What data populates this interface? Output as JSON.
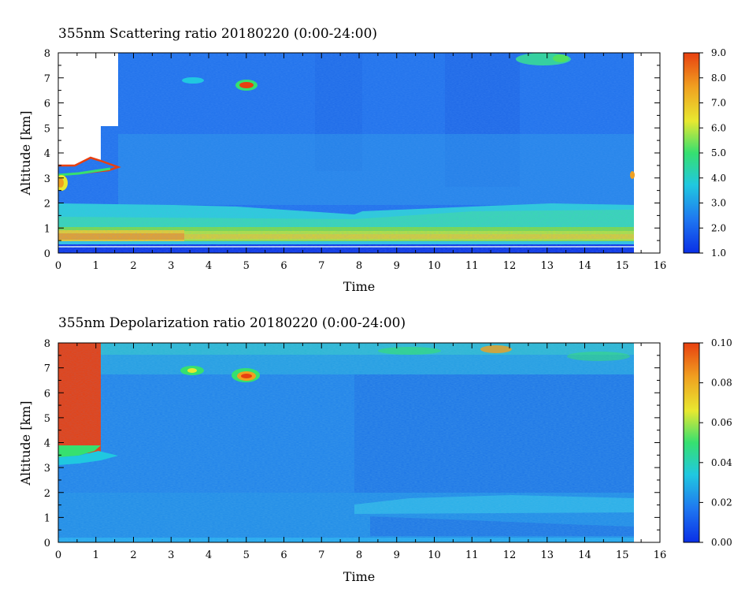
{
  "chart_data": [
    {
      "type": "heatmap",
      "title": "355nm Scattering ratio  20180220 (0:00-24:00)",
      "xlabel": "Time",
      "ylabel": "Altitude [km]",
      "xlim": [
        0,
        16
      ],
      "ylim": [
        0,
        8
      ],
      "xticks": [
        "0",
        "1",
        "2",
        "3",
        "4",
        "5",
        "6",
        "7",
        "8",
        "9",
        "10",
        "11",
        "12",
        "13",
        "14",
        "15",
        "16"
      ],
      "yticks": [
        "0",
        "1",
        "2",
        "3",
        "4",
        "5",
        "6",
        "7",
        "8"
      ],
      "data_time_end": 15.3,
      "colorbar": {
        "range": [
          1.0,
          9.0
        ],
        "ticks": [
          "1.0",
          "2.0",
          "3.0",
          "4.0",
          "5.0",
          "6.0",
          "7.0",
          "8.0",
          "9.0"
        ]
      },
      "features": [
        {
          "time": [
            0,
            1.6
          ],
          "altitude": [
            3.6,
            8.0
          ],
          "value": "no data (cloud)"
        },
        {
          "time": [
            0,
            3.5
          ],
          "altitude": [
            0.3,
            0.9
          ],
          "value": 6.0
        },
        {
          "time": [
            3.5,
            15.3
          ],
          "altitude": [
            0.3,
            1.0
          ],
          "value": 5.0
        },
        {
          "time": [
            0,
            15.3
          ],
          "altitude": [
            1.0,
            2.0
          ],
          "value": 3.2
        },
        {
          "time": [
            4.7,
            5.3
          ],
          "altitude": [
            6.5,
            6.9
          ],
          "value": 7.5
        },
        {
          "time": [
            12.6,
            13.6
          ],
          "altitude": [
            7.5,
            8.0
          ],
          "value": 4.5
        },
        {
          "time": [
            0,
            15.3
          ],
          "altitude": [
            2.0,
            8.0
          ],
          "value": 1.9
        }
      ]
    },
    {
      "type": "heatmap",
      "title": "355nm Depolarization ratio  20180220 (0:00-24:00)",
      "xlabel": "Time",
      "ylabel": "Altitude [km]",
      "xlim": [
        0,
        16
      ],
      "ylim": [
        0,
        8
      ],
      "xticks": [
        "0",
        "1",
        "2",
        "3",
        "4",
        "5",
        "6",
        "7",
        "8",
        "9",
        "10",
        "11",
        "12",
        "13",
        "14",
        "15",
        "16"
      ],
      "yticks": [
        "0",
        "1",
        "2",
        "3",
        "4",
        "5",
        "6",
        "7",
        "8"
      ],
      "data_time_end": 15.3,
      "colorbar": {
        "range": [
          0.0,
          0.1
        ],
        "ticks": [
          "0.00",
          "0.02",
          "0.04",
          "0.06",
          "0.08",
          "0.10"
        ]
      },
      "features": [
        {
          "time": [
            0,
            1.1
          ],
          "altitude": [
            3.4,
            8.0
          ],
          "value": 0.09
        },
        {
          "time": [
            3.2,
            3.8
          ],
          "altitude": [
            6.6,
            6.9
          ],
          "value": 0.04
        },
        {
          "time": [
            4.7,
            5.4
          ],
          "altitude": [
            6.4,
            6.9
          ],
          "value": 0.08
        },
        {
          "time": [
            0,
            15.3
          ],
          "altitude": [
            0,
            2.0
          ],
          "value": 0.018
        },
        {
          "time": [
            0,
            15.3
          ],
          "altitude": [
            2.0,
            8.0
          ],
          "value": 0.02
        }
      ]
    }
  ],
  "colors": {
    "colormap": [
      "#0a2fe6",
      "#1f78f0",
      "#20c8e0",
      "#36e070",
      "#e8e830",
      "#f0a020",
      "#e84010"
    ],
    "no_data": "#ffffff"
  }
}
